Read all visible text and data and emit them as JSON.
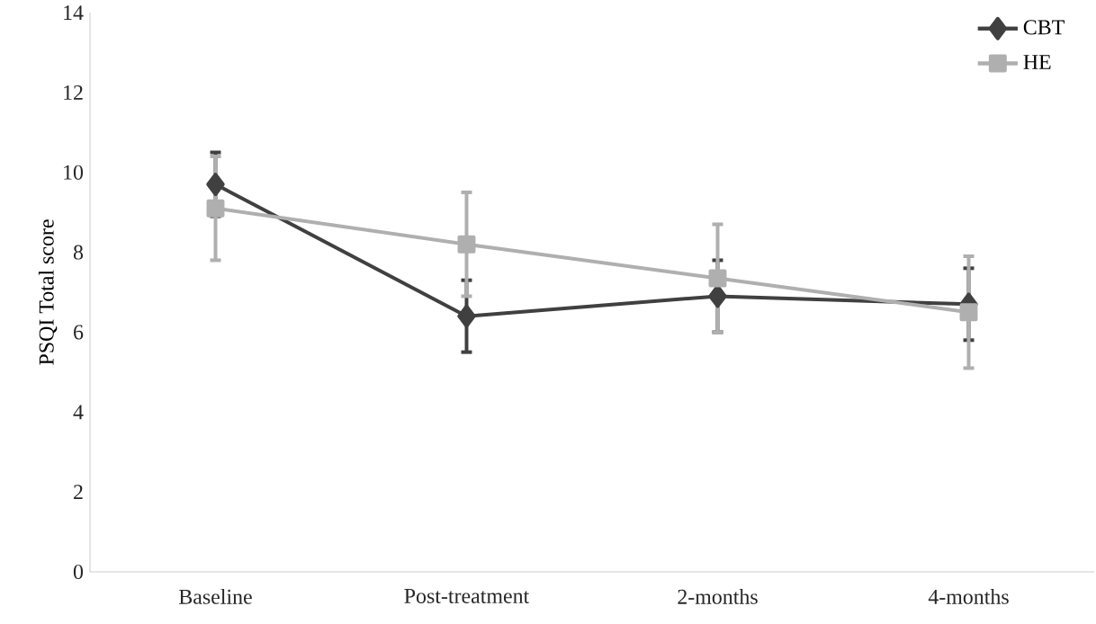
{
  "chart_data": {
    "type": "line",
    "ylabel": "PSQI Total score",
    "categories": [
      "Baseline",
      "Post-treatment",
      "2-months",
      "4-months"
    ],
    "series": [
      {
        "name": "CBT",
        "color": "#404040",
        "marker": "diamond",
        "values": [
          9.7,
          6.4,
          6.9,
          6.7
        ],
        "errors": [
          0.8,
          0.9,
          0.9,
          0.9
        ]
      },
      {
        "name": "HE",
        "color": "#afafaf",
        "marker": "square",
        "values": [
          9.1,
          8.2,
          7.35,
          6.5
        ],
        "errors": [
          1.3,
          1.3,
          1.35,
          1.4
        ]
      }
    ],
    "ylim": [
      0,
      14
    ],
    "yticks": [
      0,
      2,
      4,
      6,
      8,
      10,
      12,
      14
    ],
    "grid": false,
    "legend": "top right"
  }
}
